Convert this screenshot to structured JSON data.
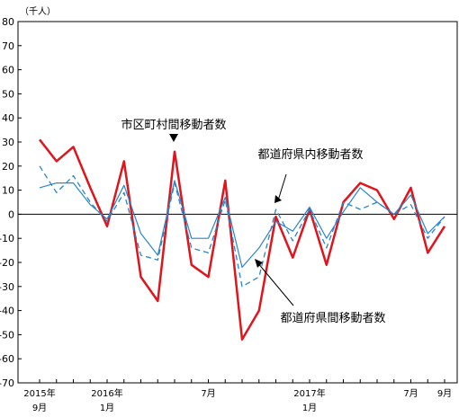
{
  "chart_data": {
    "type": "line",
    "unit_label": "（千人）",
    "ylim": [
      -70,
      80
    ],
    "yticks": [
      80,
      70,
      60,
      50,
      40,
      30,
      20,
      10,
      0,
      -10,
      -20,
      -30,
      -40,
      -50,
      -60,
      -70
    ],
    "ytick_labels": [
      "80",
      "70",
      "60",
      "50",
      "40",
      "30",
      "20",
      "10",
      "0",
      "-10",
      "-20",
      "-30",
      "-40",
      "-50",
      "-60",
      "-70"
    ],
    "x": [
      "2015-09",
      "2015-10",
      "2015-11",
      "2015-12",
      "2016-01",
      "2016-02",
      "2016-03",
      "2016-04",
      "2016-05",
      "2016-06",
      "2016-07",
      "2016-08",
      "2016-09",
      "2016-10",
      "2016-11",
      "2016-12",
      "2017-01",
      "2017-02",
      "2017-03",
      "2017-04",
      "2017-05",
      "2017-06",
      "2017-07",
      "2017-08",
      "2017-09"
    ],
    "x_labels": [
      {
        "index": 0,
        "line1": "2015年",
        "line2": "9月"
      },
      {
        "index": 4,
        "line1": "2016年",
        "line2": "1月"
      },
      {
        "index": 10,
        "line1": "7月",
        "line2": ""
      },
      {
        "index": 16,
        "line1": "2017年",
        "line2": "1月"
      },
      {
        "index": 22,
        "line1": "7月",
        "line2": ""
      },
      {
        "index": 24,
        "line1": "9月",
        "line2": ""
      }
    ],
    "series": [
      {
        "name": "都道府県間移動者数",
        "color": "#e0141c",
        "style": "solid-thick",
        "values": [
          31,
          22,
          28,
          11,
          -5,
          22,
          -26,
          -36,
          26,
          -21,
          -26,
          14,
          -52,
          -40,
          -1,
          -18,
          2,
          -21,
          5,
          13,
          10,
          -2,
          11,
          -16,
          -5
        ]
      },
      {
        "name": "都道府県内移動者数",
        "color": "#2a86c8",
        "style": "dashed",
        "values": [
          20,
          9,
          16,
          5,
          -3,
          9,
          -17,
          -19,
          13,
          -14,
          -16,
          6,
          -30,
          -26,
          2,
          -11,
          2,
          -14,
          5,
          2,
          5,
          0,
          4,
          -10,
          -1
        ]
      },
      {
        "name": "市区町村間移動者数",
        "color": "#2a86c8",
        "style": "solid-thin",
        "values": [
          11,
          13,
          13,
          4,
          -2,
          12,
          -8,
          -17,
          14,
          -10,
          -10,
          7,
          -22,
          -14,
          -3,
          -7,
          3,
          -10,
          1,
          11,
          5,
          0,
          8,
          -8,
          -1
        ]
      }
    ],
    "annotations": [
      {
        "text": "市区町村間移動者数",
        "target_series": 2
      },
      {
        "text": "都道府県内移動者数",
        "target_series": 1
      },
      {
        "text": "都道府県間移動者数",
        "target_series": 0
      }
    ]
  }
}
